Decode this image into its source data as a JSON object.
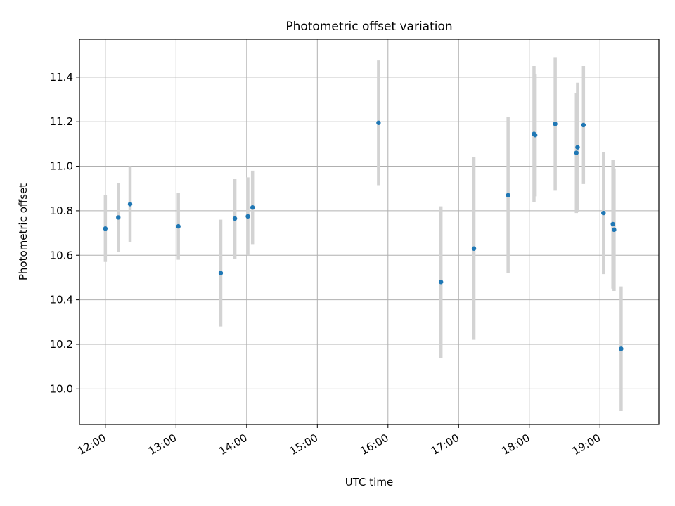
{
  "chart_data": {
    "type": "scatter",
    "title": "Photometric offset variation",
    "xlabel": "UTC time",
    "ylabel": "Photometric offset",
    "x_ticks": [
      "12:00",
      "13:00",
      "14:00",
      "15:00",
      "16:00",
      "17:00",
      "18:00",
      "19:00"
    ],
    "y_ticks": [
      "10.0",
      "10.2",
      "10.4",
      "10.6",
      "10.8",
      "11.0",
      "11.2",
      "11.4"
    ],
    "xlim": [
      "11:38",
      "19:50"
    ],
    "ylim": [
      9.84,
      11.57
    ],
    "grid": true,
    "colors": {
      "point": "#1f77b4",
      "errorbar": "#d3d3d3",
      "grid": "#b0b0b0"
    },
    "points": [
      {
        "x": "12:00",
        "y": 10.72,
        "err": 0.15
      },
      {
        "x": "12:11",
        "y": 10.77,
        "err": 0.155
      },
      {
        "x": "12:21",
        "y": 10.83,
        "err": 0.17
      },
      {
        "x": "13:02",
        "y": 10.73,
        "err": 0.15
      },
      {
        "x": "13:38",
        "y": 10.52,
        "err": 0.24
      },
      {
        "x": "13:50",
        "y": 10.765,
        "err": 0.18
      },
      {
        "x": "14:01",
        "y": 10.775,
        "err": 0.175
      },
      {
        "x": "14:05",
        "y": 10.815,
        "err": 0.165
      },
      {
        "x": "15:52",
        "y": 11.195,
        "err": 0.28
      },
      {
        "x": "16:45",
        "y": 10.48,
        "err": 0.34
      },
      {
        "x": "17:13",
        "y": 10.63,
        "err": 0.41
      },
      {
        "x": "17:42",
        "y": 10.87,
        "err": 0.35
      },
      {
        "x": "18:04",
        "y": 11.145,
        "err": 0.305
      },
      {
        "x": "18:05",
        "y": 11.14,
        "err": 0.275
      },
      {
        "x": "18:22",
        "y": 11.19,
        "err": 0.3
      },
      {
        "x": "18:40",
        "y": 11.06,
        "err": 0.27
      },
      {
        "x": "18:41",
        "y": 11.085,
        "err": 0.29
      },
      {
        "x": "18:46",
        "y": 11.185,
        "err": 0.265
      },
      {
        "x": "19:03",
        "y": 10.79,
        "err": 0.275
      },
      {
        "x": "19:11",
        "y": 10.74,
        "err": 0.29
      },
      {
        "x": "19:12",
        "y": 10.715,
        "err": 0.275
      },
      {
        "x": "19:18",
        "y": 10.18,
        "err": 0.28
      }
    ]
  }
}
